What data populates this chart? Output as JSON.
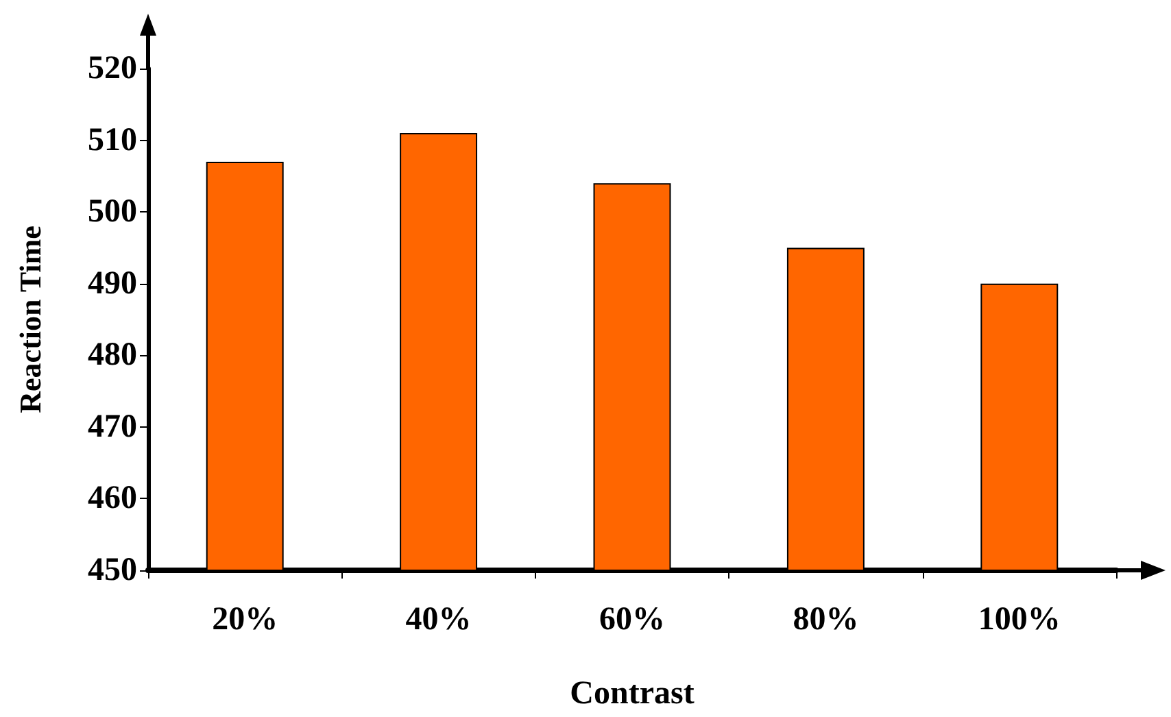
{
  "chart_data": {
    "type": "bar",
    "xlabel": "Contrast",
    "ylabel": "Reaction Time",
    "categories": [
      "20%",
      "40%",
      "60%",
      "80%",
      "100%"
    ],
    "values": [
      507,
      511,
      504,
      495,
      490
    ],
    "color": "#ff6600",
    "ylim": [
      450,
      520
    ],
    "yticks": [
      450,
      460,
      470,
      480,
      490,
      500,
      510,
      520
    ],
    "grid": false
  }
}
